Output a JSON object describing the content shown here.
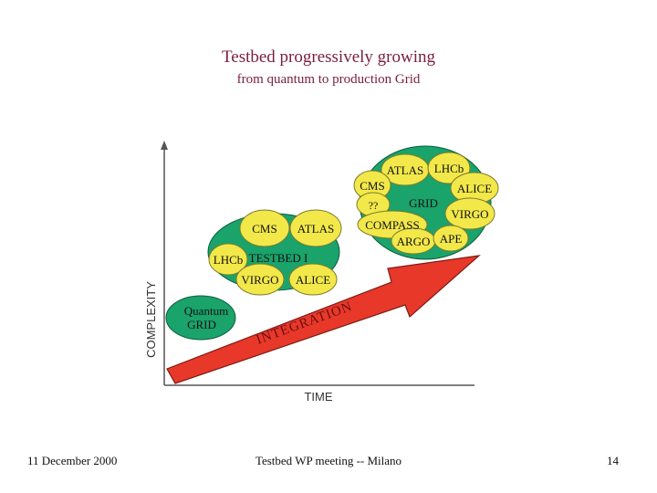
{
  "slide": {
    "title": "Testbed progressively growing",
    "subtitle": "from quantum to production Grid"
  },
  "diagram": {
    "y_axis_label": "COMPLEXITY",
    "x_axis_label": "TIME",
    "arrow_label": "INTEGRATION",
    "stage1": {
      "center_lines": [
        "Quantum",
        "GRID"
      ]
    },
    "stage2": {
      "center_label": "TESTBED I",
      "bubbles": [
        "CMS",
        "ATLAS",
        "LHCb",
        "VIRGO",
        "ALICE"
      ]
    },
    "stage3": {
      "center_label": "GRID",
      "bubbles": [
        "ATLAS",
        "LHCb",
        "CMS",
        "ALICE",
        "??",
        "VIRGO",
        "COMPASS",
        "ARGO",
        "APE"
      ]
    },
    "colors": {
      "cloud_fill": "#1aa36b",
      "bubble_fill": "#f2e84a",
      "arrow_fill": "#e8382a",
      "axis": "#555555"
    }
  },
  "footer": {
    "date": "11 December 2000",
    "event": "Testbed WP meeting  -- Milano",
    "page": "14"
  }
}
